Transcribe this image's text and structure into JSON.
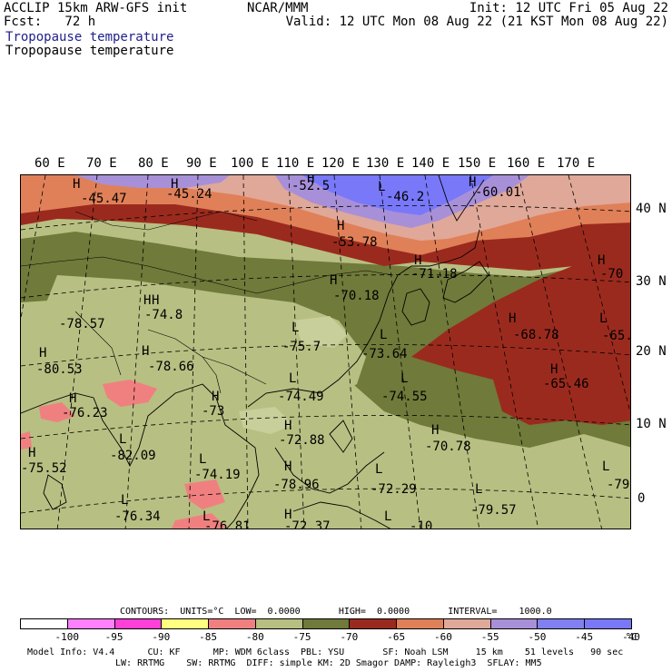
{
  "header": {
    "line1_left": "ACCLIP 15km ARW-GFS init",
    "line2_left": "Fcst:   72 h",
    "center": "NCAR/MMM",
    "init": "Init: 12 UTC Fri 05 Aug 22",
    "valid": "Valid: 12 UTC Mon 08 Aug 22 (21 KST Mon 08 Aug 22)",
    "field_blue": "Tropopause temperature",
    "field_black": "Tropopause temperature"
  },
  "map": {
    "lon_labels": [
      "60 E",
      "70 E",
      "80 E",
      "90 E",
      "100 E",
      "110 E",
      "120 E",
      "130 E",
      "140 E",
      "150 E",
      "160 E",
      "170 E"
    ],
    "lat_labels": [
      "40 N",
      "30 N",
      "20 N",
      "10 N",
      "0"
    ],
    "extrema": [
      {
        "kind": "H",
        "value": "-45.47"
      },
      {
        "kind": "H",
        "value": "-45.24"
      },
      {
        "kind": "H",
        "value": "-52.5"
      },
      {
        "kind": "L",
        "value": "-46.2"
      },
      {
        "kind": "H",
        "value": "-60.01"
      },
      {
        "kind": "H",
        "value": "-53.78"
      },
      {
        "kind": "H",
        "value": "-71.18"
      },
      {
        "kind": "H",
        "value": "-70"
      },
      {
        "kind": "H",
        "value": "-70.18"
      },
      {
        "kind": "H",
        "value": "-78.57"
      },
      {
        "kind": "H",
        "value": "-74.8"
      },
      {
        "kind": "L",
        "value": "-75.7"
      },
      {
        "kind": "L",
        "value": "-73.64"
      },
      {
        "kind": "H",
        "value": "-68.78"
      },
      {
        "kind": "L",
        "value": "-65."
      },
      {
        "kind": "H",
        "value": "-80.53"
      },
      {
        "kind": "H",
        "value": "-78.66"
      },
      {
        "kind": "L",
        "value": "-74.49"
      },
      {
        "kind": "L",
        "value": "-74.55"
      },
      {
        "kind": "H",
        "value": "-65.46"
      },
      {
        "kind": "H",
        "value": "-76.23"
      },
      {
        "kind": "H",
        "value": "-73"
      },
      {
        "kind": "H",
        "value": "-72.88"
      },
      {
        "kind": "H",
        "value": "-70.78"
      },
      {
        "kind": "L",
        "value": "-82.09"
      },
      {
        "kind": "H",
        "value": "-75.52"
      },
      {
        "kind": "L",
        "value": "-74.19"
      },
      {
        "kind": "H",
        "value": "-78.96"
      },
      {
        "kind": "L",
        "value": "-72.29"
      },
      {
        "kind": "L",
        "value": "-79"
      },
      {
        "kind": "L",
        "value": "-76.34"
      },
      {
        "kind": "L",
        "value": "-79.57"
      },
      {
        "kind": "L",
        "value": "-76.81"
      },
      {
        "kind": "H",
        "value": "-72.37"
      },
      {
        "kind": "L",
        "value": "-10"
      }
    ]
  },
  "contours_line": "CONTOURS:  UNITS=°C  LOW=  0.0000       HIGH=  0.0000       INTERVAL=    1000.0",
  "colorbar": {
    "colors": [
      "#ffffff",
      "#ff80ff",
      "#ff40d8",
      "#ffff80",
      "#f08080",
      "#b8bf82",
      "#707a3a",
      "#9b2a1e",
      "#e08058",
      "#e0a898",
      "#a890d8",
      "#8080f0",
      "#7878f8"
    ],
    "labels": [
      "-100",
      "-95",
      "-90",
      "-85",
      "-80",
      "-75",
      "-70",
      "-65",
      "-60",
      "-55",
      "-50",
      "-45",
      "-40"
    ],
    "unit": "°C"
  },
  "footer": {
    "line1": "Model Info: V4.4      CU: KF      MP: WDM 6class  PBL: YSU       SF: Noah LSM     15 km    51 levels   90 sec",
    "line2": "LW: RRTMG    SW: RRTMG  DIFF: simple KM: 2D Smagor DAMP: Rayleigh3  SFLAY: MM5"
  }
}
